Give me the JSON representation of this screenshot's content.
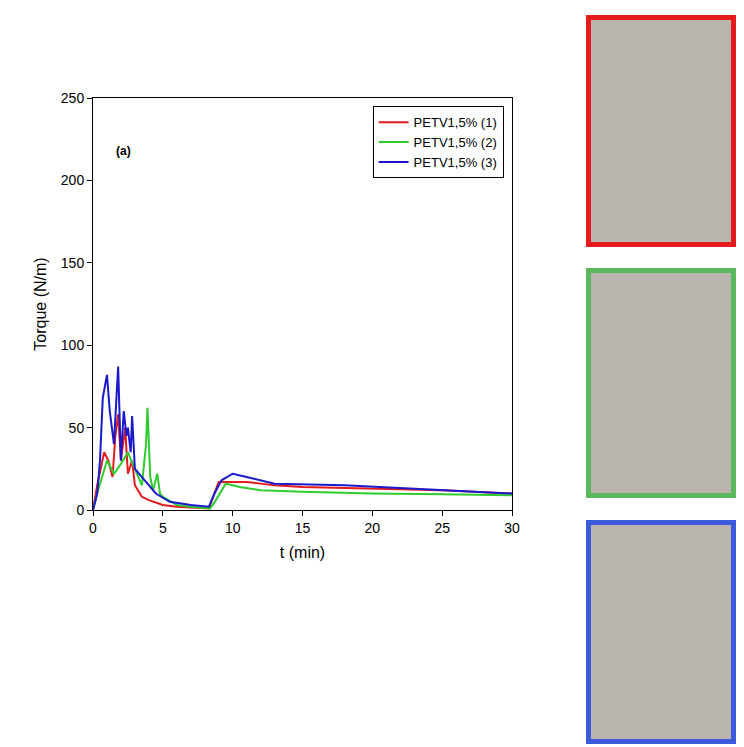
{
  "chart_data": {
    "type": "line",
    "x_label": "t (min)",
    "y_label": "Torque (N/m)",
    "xlim": [
      0,
      30
    ],
    "xticks": [
      0,
      5,
      10,
      15,
      20,
      25,
      30
    ],
    "ylim": [
      0,
      250
    ],
    "yticks": [
      0,
      50,
      100,
      150,
      200,
      250
    ],
    "grid": false,
    "legend": "upper right",
    "annotations": [
      {
        "text": "(a)",
        "x": 2.2,
        "y": 218
      }
    ],
    "series": [
      {
        "name": "PETV1,5% (1)",
        "color": "#e41a1c",
        "x": [
          0,
          0.3,
          0.8,
          1.1,
          1.4,
          1.6,
          1.8,
          2.0,
          2.3,
          2.5,
          2.8,
          3.0,
          3.5,
          4.0,
          5.0,
          6.0,
          7.0,
          8.3,
          8.6,
          9.0,
          10,
          11,
          12,
          13,
          15,
          20,
          25,
          30
        ],
        "values": [
          0,
          15,
          35,
          30,
          20,
          45,
          58,
          30,
          50,
          22,
          30,
          15,
          8,
          6,
          3,
          2,
          1.5,
          1,
          8,
          17,
          17,
          17,
          16,
          15,
          14,
          13,
          12,
          10
        ]
      },
      {
        "name": "PETV1,5% (2)",
        "color": "#2ecc2e",
        "x": [
          0,
          0.3,
          1.0,
          1.5,
          2.0,
          2.5,
          3.0,
          3.5,
          3.8,
          3.9,
          4.1,
          4.3,
          4.6,
          4.8,
          5.0,
          6.0,
          7.0,
          8.4,
          8.8,
          9.5,
          10.5,
          12,
          15,
          20,
          25,
          30
        ],
        "values": [
          0,
          10,
          30,
          22,
          28,
          35,
          25,
          15,
          40,
          62,
          20,
          12,
          22,
          10,
          8,
          3,
          2,
          1,
          6,
          16,
          14,
          12,
          11,
          10,
          9.5,
          9
        ]
      },
      {
        "name": "PETV1,5% (3)",
        "color": "#1a1acc",
        "x": [
          0,
          0.3,
          0.5,
          0.7,
          1.0,
          1.2,
          1.5,
          1.8,
          2.0,
          2.2,
          2.4,
          2.5,
          2.7,
          2.8,
          3.0,
          3.5,
          4.5,
          5.5,
          7.0,
          8.3,
          8.7,
          9.2,
          10,
          11,
          13,
          18,
          23,
          27,
          30
        ],
        "values": [
          0,
          10,
          30,
          68,
          82,
          60,
          40,
          87,
          30,
          60,
          45,
          50,
          35,
          57,
          25,
          20,
          10,
          5,
          3,
          2,
          10,
          18,
          22,
          20,
          16,
          15,
          13,
          11,
          10
        ]
      }
    ]
  }
}
